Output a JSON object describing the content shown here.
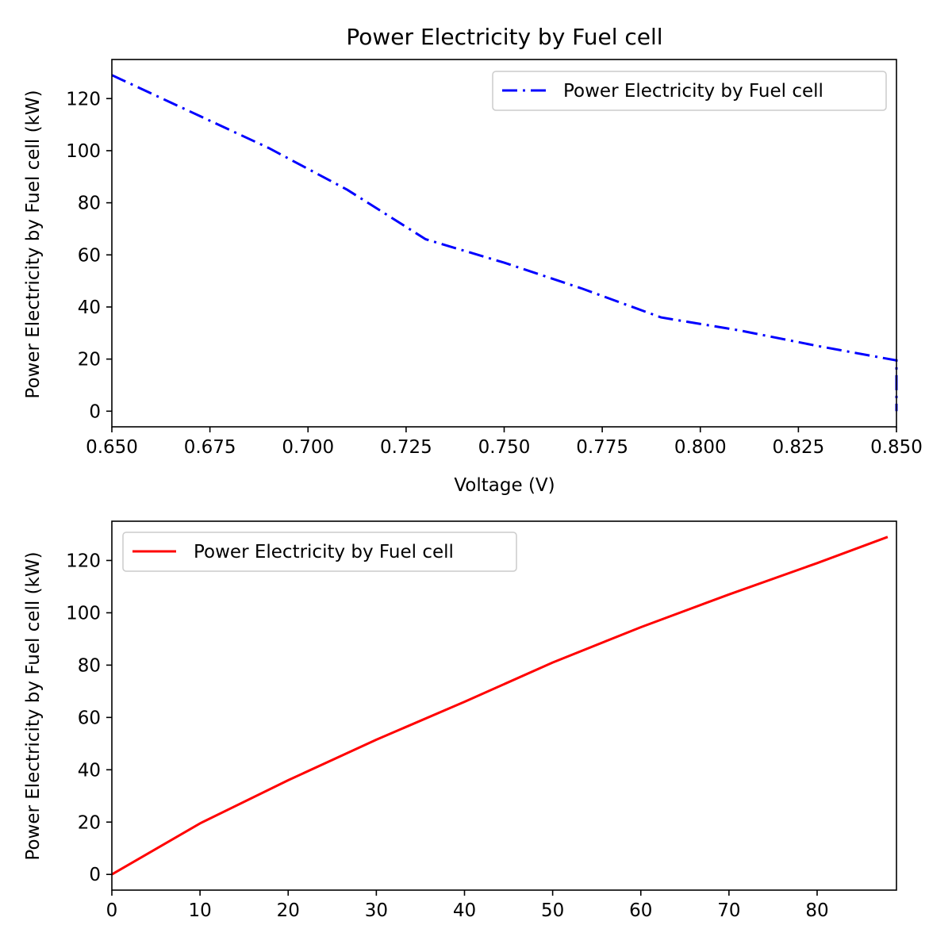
{
  "chart_data": [
    {
      "type": "line",
      "title": "Power Electricity by Fuel cell",
      "xlabel": "Voltage (V)",
      "ylabel": "Power Electricity by Fuel cell (kW)",
      "xlim": [
        0.65,
        0.85
      ],
      "ylim": [
        -6,
        135
      ],
      "x_ticks": [
        0.65,
        0.675,
        0.7,
        0.725,
        0.75,
        0.775,
        0.8,
        0.825,
        0.85
      ],
      "x_tick_labels": [
        "0.650",
        "0.675",
        "0.700",
        "0.725",
        "0.750",
        "0.775",
        "0.800",
        "0.825",
        "0.850"
      ],
      "y_ticks": [
        0,
        20,
        40,
        60,
        80,
        100,
        120
      ],
      "y_tick_labels": [
        "0",
        "20",
        "40",
        "60",
        "80",
        "100",
        "120"
      ],
      "grid": false,
      "legend_position": "top-right",
      "series": [
        {
          "name": "Power Electricity by Fuel cell",
          "color": "#0000ff",
          "line_style": "dash-dot",
          "x": [
            0.65,
            0.67,
            0.69,
            0.71,
            0.73,
            0.75,
            0.77,
            0.79,
            0.81,
            0.83,
            0.85,
            0.85
          ],
          "y": [
            129,
            115,
            101,
            85,
            66,
            57,
            47,
            36,
            31,
            25,
            19.5,
            0
          ]
        }
      ]
    },
    {
      "type": "line",
      "title": "",
      "xlabel": "",
      "ylabel": "Power Electricity by Fuel cell (kW)",
      "xlim": [
        0,
        89
      ],
      "ylim": [
        -6,
        135
      ],
      "x_ticks": [
        0,
        10,
        20,
        30,
        40,
        50,
        60,
        70,
        80
      ],
      "x_tick_labels": [
        "0",
        "10",
        "20",
        "30",
        "40",
        "50",
        "60",
        "70",
        "80"
      ],
      "y_ticks": [
        0,
        20,
        40,
        60,
        80,
        100,
        120
      ],
      "y_tick_labels": [
        "0",
        "20",
        "40",
        "60",
        "80",
        "100",
        "120"
      ],
      "grid": false,
      "legend_position": "top-left",
      "series": [
        {
          "name": "Power Electricity by Fuel cell",
          "color": "#ff0000",
          "line_style": "solid",
          "x": [
            0,
            10,
            20,
            30,
            40,
            50,
            60,
            70,
            80,
            88
          ],
          "y": [
            0,
            19.5,
            36,
            51.5,
            66,
            81,
            94.5,
            107,
            119,
            129
          ]
        }
      ]
    }
  ]
}
